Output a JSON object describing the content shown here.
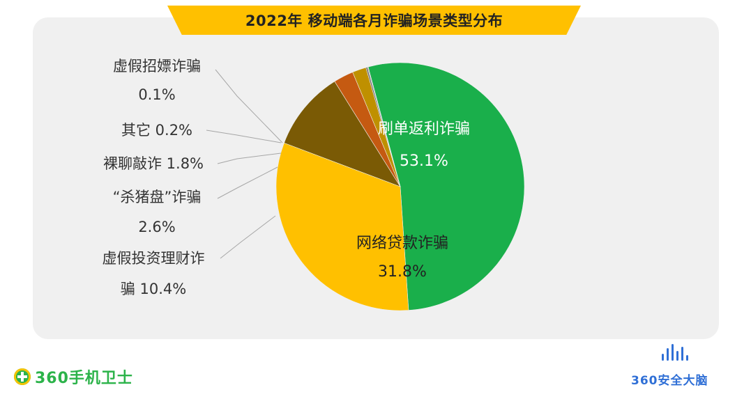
{
  "title": "2022年 移动端各月诈骗场景类型分布",
  "chart_data": {
    "type": "pie",
    "title": "2022年 移动端各月诈骗场景类型分布",
    "slices": [
      {
        "name": "刷单返利诈骗",
        "value": 53.1,
        "value_label": "53.1%",
        "color": "#1aaf4b"
      },
      {
        "name": "网络贷款诈骗",
        "value": 31.8,
        "value_label": "31.8%",
        "color": "#ffc000"
      },
      {
        "name": "虚假投资理财诈骗",
        "value": 10.4,
        "value_label": "10.4%",
        "color": "#7a5a05"
      },
      {
        "name": "“杀猪盘”诈骗",
        "value": 2.6,
        "value_label": "2.6%",
        "color": "#c55a11"
      },
      {
        "name": "裸聊敲诈",
        "value": 1.8,
        "value_label": "1.8%",
        "color": "#bf9000"
      },
      {
        "name": "其它",
        "value": 0.2,
        "value_label": "0.2%",
        "color": "#6b6b6b"
      },
      {
        "name": "虚假招嫖诈骗",
        "value": 0.1,
        "value_label": "0.1%",
        "color": "#9c9c9c"
      }
    ]
  },
  "callouts": {
    "zhaopiao_line1": "虚假招嫖诈骗",
    "zhaopiao_line2": "0.1%",
    "qita": "其它 0.2%",
    "luoliao": "裸聊敲诈 1.8%",
    "shazhupan_line1": "“杀猪盘”诈骗",
    "shazhupan_line2": "2.6%",
    "touzi_line1": "虚假投资理财诈",
    "touzi_line2": "骗 10.4%"
  },
  "inner_labels": {
    "shuadan_name": "刷单返利诈骗",
    "shuadan_value": "53.1%",
    "daikuan_name": "网络贷款诈骗",
    "daikuan_value": "31.8%"
  },
  "logos": {
    "left_text": "360手机卫士",
    "right_text": "360安全大脑",
    "left_color": "#2cb34a",
    "right_color": "#2f6fd6"
  }
}
